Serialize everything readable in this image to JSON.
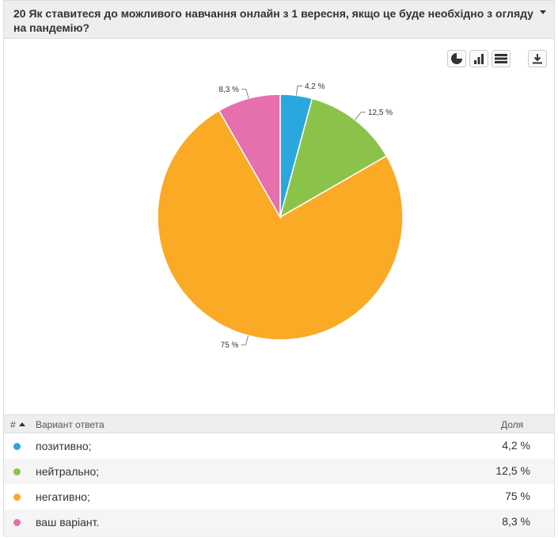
{
  "header": {
    "title": "20 Як ставитеся до можливого навчання онлайн з 1 вересня, якщо це буде необхідно з огляду на пандемію?"
  },
  "toolbar": {
    "icons": [
      "pie-chart-icon",
      "bar-chart-icon",
      "table-view-icon",
      "download-icon"
    ]
  },
  "table": {
    "col_num": "#",
    "col_variant": "Вариант ответа",
    "col_share": "Доля"
  },
  "chart_data": {
    "type": "pie",
    "slices": [
      {
        "name": "позитивно;",
        "value": 4.2,
        "label": "4,2 %",
        "color": "#2aa7dd"
      },
      {
        "name": "нейтрально;",
        "value": 12.5,
        "label": "12,5 %",
        "color": "#8bc34a"
      },
      {
        "name": "негативно;",
        "value": 75,
        "label": "75 %",
        "color": "#fbaa26"
      },
      {
        "name": "ваш варіант.",
        "value": 8.3,
        "label": "8,3 %",
        "color": "#e66fae"
      }
    ]
  }
}
